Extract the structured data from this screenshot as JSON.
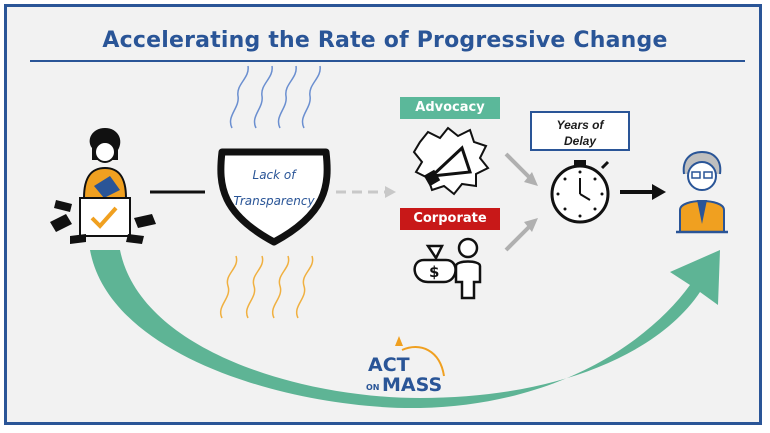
{
  "title": "Accelerating the Rate of Progressive Change",
  "shield": {
    "line1": "Lack of",
    "line2": "Transparency"
  },
  "advocacy_label": "Advocacy",
  "corporate_label": "Corporate",
  "delay": {
    "line1": "Years of",
    "line2": "Delay"
  },
  "logo": {
    "act": "ACT",
    "on": "ON",
    "mass": "MASS"
  },
  "colors": {
    "title": "#2a5597",
    "advocacy": "#5bb89a",
    "corporate": "#c81818",
    "arc": "#55b08f",
    "orange": "#f0a020"
  },
  "icons": [
    "voter-ballot-icon",
    "shield-icon",
    "megaphone-icon",
    "money-bag-person-icon",
    "stopwatch-icon",
    "legislator-icon",
    "act-on-mass-logo"
  ]
}
